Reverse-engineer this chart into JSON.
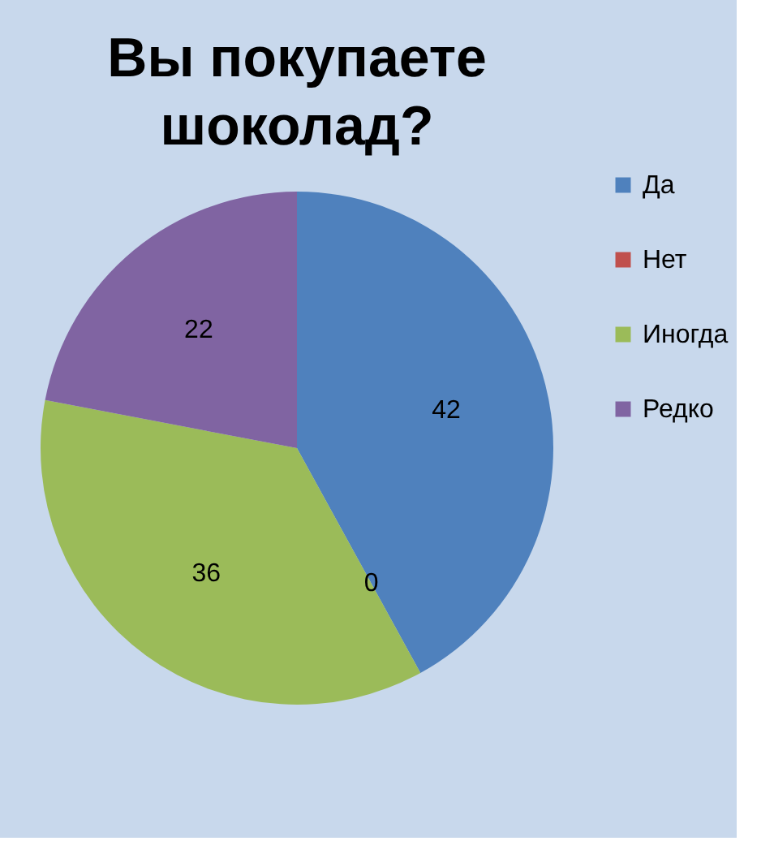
{
  "chart_data": {
    "type": "pie",
    "title": "Вы покупаете шоколад?",
    "categories": [
      "Да",
      "Нет",
      "Иногда",
      "Редко"
    ],
    "values": [
      42,
      0,
      36,
      22
    ],
    "colors": [
      "#4f81bd",
      "#c0504d",
      "#9bbb59",
      "#8064a2"
    ],
    "value_labels": [
      "42",
      "0",
      "36",
      "22"
    ],
    "legend": "right"
  }
}
